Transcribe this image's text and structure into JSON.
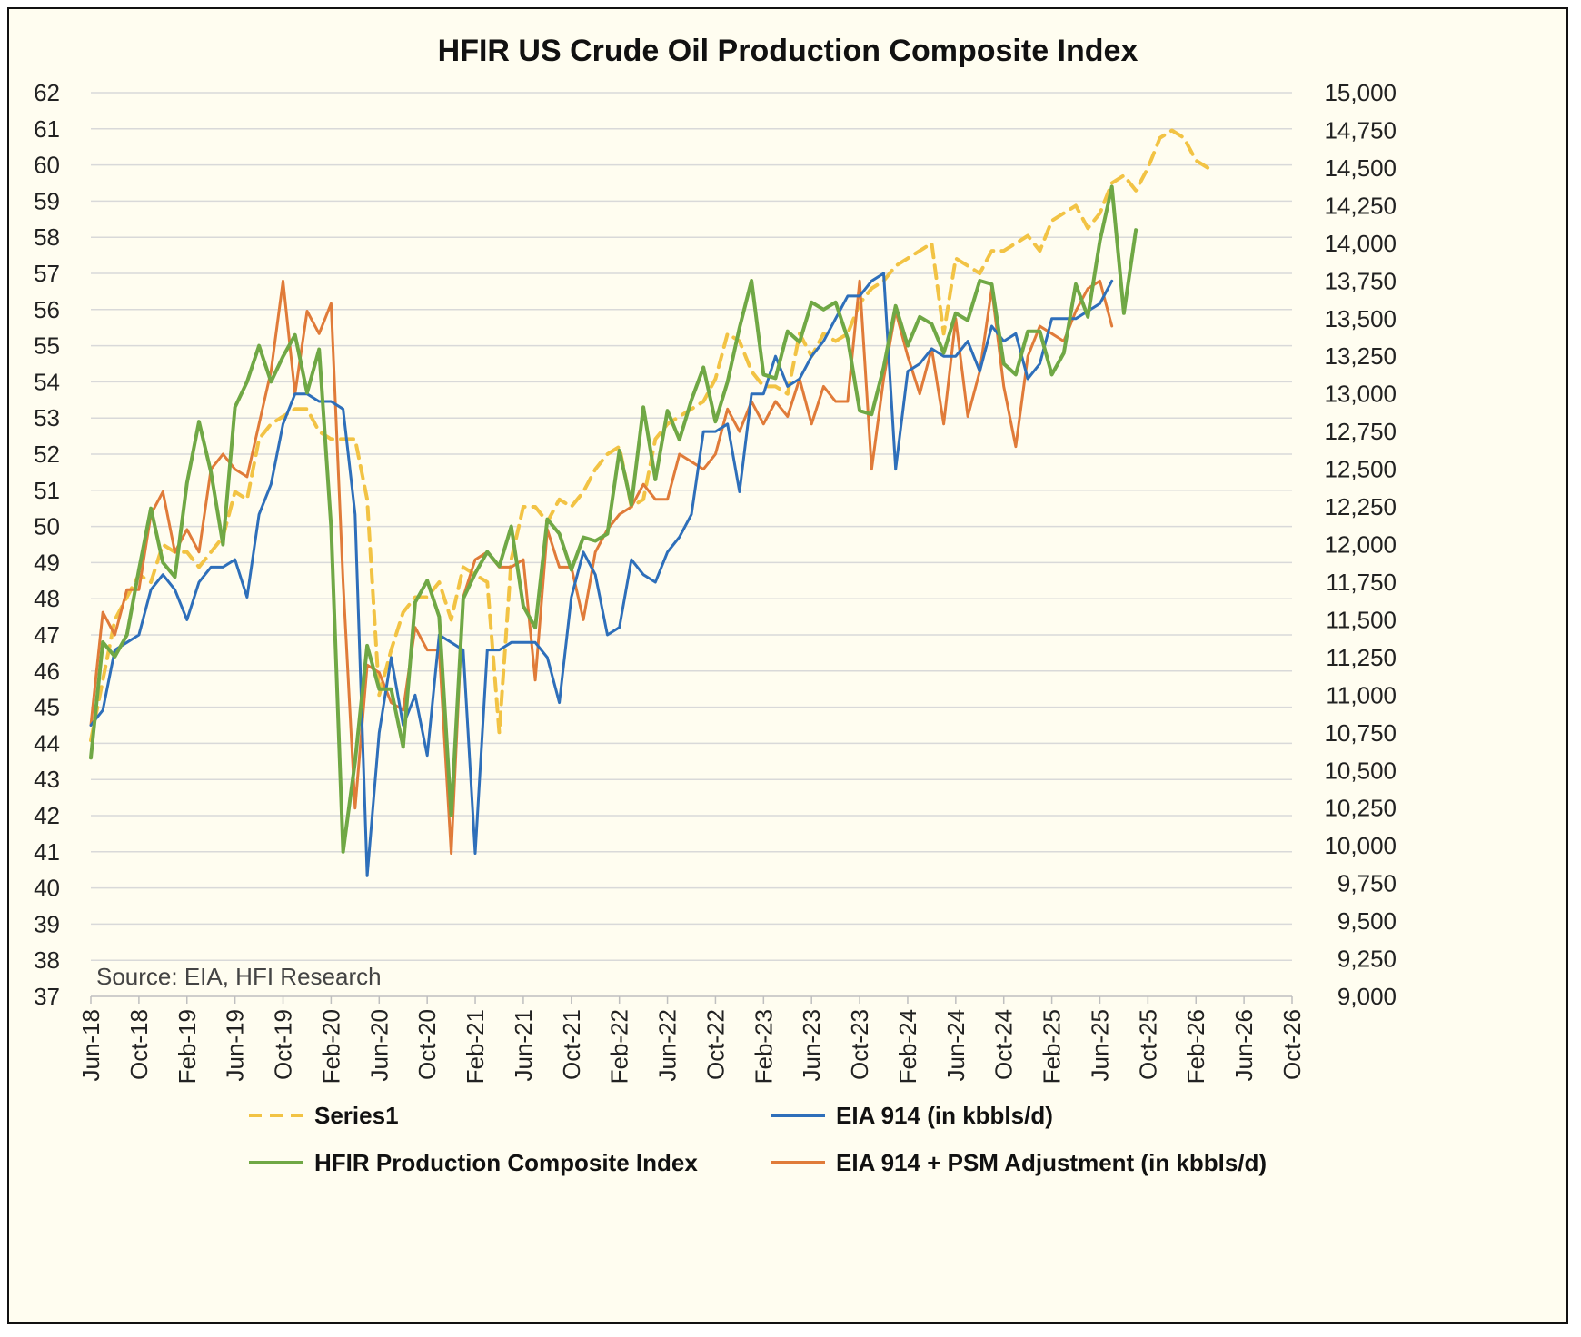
{
  "chart_data": {
    "type": "line",
    "title": "HFIR US Crude Oil Production Composite Index",
    "source_note": "Source: EIA, HFI Research",
    "left_axis": {
      "ylim": [
        37,
        62
      ],
      "ticks": [
        "37",
        "38",
        "39",
        "40",
        "41",
        "42",
        "43",
        "44",
        "45",
        "46",
        "47",
        "48",
        "49",
        "50",
        "51",
        "52",
        "53",
        "54",
        "55",
        "56",
        "57",
        "58",
        "59",
        "60",
        "61",
        "62"
      ]
    },
    "right_axis": {
      "ylim": [
        9000,
        15000
      ],
      "ticks": [
        "9,000",
        "9,250",
        "9,500",
        "9,750",
        "10,000",
        "10,250",
        "10,500",
        "10,750",
        "11,000",
        "11,250",
        "11,500",
        "11,750",
        "12,000",
        "12,250",
        "12,500",
        "12,750",
        "13,000",
        "13,250",
        "13,500",
        "13,750",
        "14,000",
        "14,250",
        "14,500",
        "14,750",
        "15,000"
      ]
    },
    "x_axis": {
      "start": "Jun-18",
      "months_span": 100,
      "tick_labels": [
        "Jun-18",
        "Oct-18",
        "Feb-19",
        "Jun-19",
        "Oct-19",
        "Feb-20",
        "Jun-20",
        "Oct-20",
        "Feb-21",
        "Jun-21",
        "Oct-21",
        "Feb-22",
        "Jun-22",
        "Oct-22",
        "Feb-23",
        "Jun-23",
        "Oct-23",
        "Feb-24",
        "Jun-24",
        "Oct-24",
        "Feb-25",
        "Jun-25",
        "Oct-25",
        "Feb-26",
        "Jun-26",
        "Oct-26"
      ]
    },
    "grid": "horizontal",
    "legend_position": "bottom",
    "series": [
      {
        "name": "Series1",
        "axis": "right",
        "color": "#f2c344",
        "style": "dashed",
        "start": "Jun-18",
        "values": [
          10700,
          11100,
          11500,
          11650,
          11800,
          11750,
          12000,
          11950,
          11950,
          11850,
          11950,
          12050,
          12350,
          12300,
          12700,
          12800,
          12850,
          12900,
          12900,
          12750,
          12700,
          12700,
          12700,
          12300,
          11000,
          11300,
          11550,
          11650,
          11650,
          11750,
          11500,
          11850,
          11800,
          11750,
          10750,
          11900,
          12250,
          12250,
          12150,
          12300,
          12250,
          12350,
          12500,
          12600,
          12650,
          12250,
          12300,
          12700,
          12800,
          12850,
          12900,
          12950,
          13100,
          13400,
          13350,
          13150,
          13050,
          13050,
          13000,
          13400,
          13250,
          13400,
          13350,
          13400,
          13600,
          13700,
          13750,
          13850,
          13900,
          13950,
          14000,
          13400,
          13900,
          13850,
          13800,
          13950,
          13950,
          14000,
          14050,
          13950,
          14150,
          14200,
          14250,
          14100,
          14200,
          14400,
          14450,
          14350,
          14500,
          14700,
          14750,
          14700,
          14550,
          14500
        ]
      },
      {
        "name": "EIA 914 (in kbbls/d)",
        "axis": "right",
        "color": "#2e6fba",
        "style": "solid",
        "start": "Jun-18",
        "values": [
          10800,
          10900,
          11300,
          11350,
          11400,
          11700,
          11800,
          11700,
          11500,
          11750,
          11850,
          11850,
          11900,
          11650,
          12200,
          12400,
          12800,
          13000,
          13000,
          12950,
          12950,
          12900,
          12200,
          9800,
          10750,
          11250,
          10800,
          11000,
          10600,
          11400,
          11350,
          11300,
          9950,
          11300,
          11300,
          11350,
          11350,
          11350,
          11250,
          10950,
          11650,
          11950,
          11800,
          11400,
          11450,
          11900,
          11800,
          11750,
          11950,
          12050,
          12200,
          12750,
          12750,
          12800,
          12350,
          13000,
          13000,
          13250,
          13050,
          13100,
          13250,
          13350,
          13500,
          13650,
          13650,
          13750,
          13800,
          12500,
          13150,
          13200,
          13300,
          13250,
          13250,
          13350,
          13150,
          13450,
          13350,
          13400,
          13100,
          13200,
          13500,
          13500,
          13500,
          13550,
          13600,
          13750
        ]
      },
      {
        "name": "HFIR Production Composite Index",
        "axis": "left",
        "color": "#70a845",
        "style": "solid",
        "start": "Jun-18",
        "values": [
          43.6,
          46.8,
          46.4,
          47.0,
          48.8,
          50.5,
          49.0,
          48.6,
          51.2,
          52.9,
          51.5,
          49.5,
          53.3,
          54.0,
          55.0,
          54.0,
          54.7,
          55.3,
          53.7,
          54.9,
          50.0,
          41.0,
          43.5,
          46.7,
          45.5,
          45.5,
          43.9,
          47.9,
          48.5,
          47.5,
          42.0,
          48.0,
          48.7,
          49.3,
          48.9,
          50.0,
          47.8,
          47.2,
          50.2,
          49.8,
          48.8,
          49.7,
          49.6,
          49.8,
          52.1,
          50.6,
          53.3,
          51.3,
          53.2,
          52.4,
          53.5,
          54.4,
          52.9,
          54.0,
          55.5,
          56.8,
          54.2,
          54.1,
          55.4,
          55.1,
          56.2,
          56.0,
          56.2,
          55.2,
          53.2,
          53.1,
          54.4,
          56.1,
          55.0,
          55.8,
          55.6,
          54.8,
          55.9,
          55.7,
          56.8,
          56.7,
          54.5,
          54.2,
          55.4,
          55.4,
          54.2,
          54.8,
          56.7,
          55.8,
          57.9,
          59.4,
          55.9,
          58.2
        ]
      },
      {
        "name": "EIA 914 + PSM Adjustment (in kbbls/d)",
        "axis": "right",
        "color": "#e07b39",
        "style": "solid",
        "start": "Jun-18",
        "values": [
          10800,
          11550,
          11400,
          11700,
          11700,
          12200,
          12350,
          11950,
          12100,
          11950,
          12500,
          12600,
          12500,
          12450,
          12800,
          13150,
          13750,
          13000,
          13550,
          13400,
          13600,
          11750,
          10250,
          11200,
          11150,
          10950,
          10900,
          11450,
          11300,
          11300,
          9950,
          11650,
          11900,
          11950,
          11850,
          11850,
          11900,
          11100,
          12100,
          11850,
          11850,
          11500,
          11950,
          12100,
          12200,
          12250,
          12400,
          12300,
          12300,
          12600,
          12550,
          12500,
          12600,
          12900,
          12750,
          12950,
          12800,
          12950,
          12850,
          13100,
          12800,
          13050,
          12950,
          12950,
          13750,
          12500,
          13100,
          13550,
          13250,
          13000,
          13300,
          12800,
          13500,
          12850,
          13150,
          13700,
          13050,
          12650,
          13250,
          13450,
          13400,
          13350,
          13550,
          13700,
          13750,
          13450
        ]
      }
    ]
  }
}
